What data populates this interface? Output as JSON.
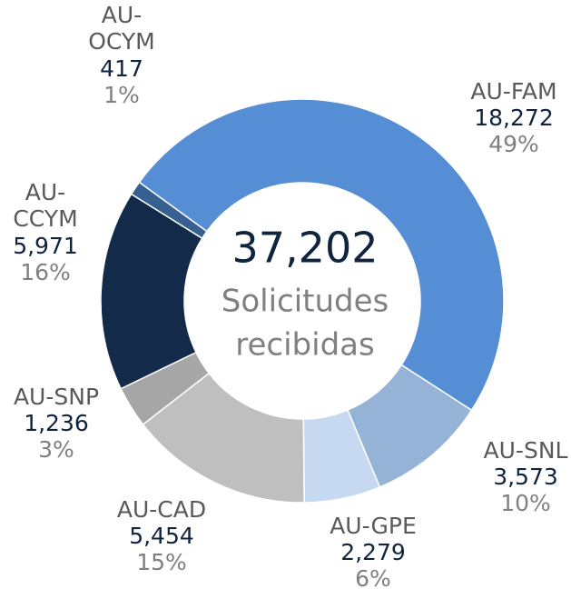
{
  "chart_data": {
    "type": "donut",
    "total": 37202,
    "total_label": "37,202",
    "subtitle": "Solicitudes recibidas",
    "categories": [
      "AU-FAM",
      "AU-SNL",
      "AU-GPE",
      "AU-CAD",
      "AU-SNP",
      "AU-CCYM",
      "AU-OCYM"
    ],
    "values": [
      18272,
      3573,
      2279,
      5454,
      1236,
      5971,
      417
    ],
    "value_labels": [
      "18,272",
      "3,573",
      "2,279",
      "5,454",
      "1,236",
      "5,971",
      "417"
    ],
    "percents": [
      49,
      10,
      6,
      15,
      3,
      16,
      1
    ],
    "percent_labels": [
      "49%",
      "10%",
      "6%",
      "15%",
      "3%",
      "16%",
      "1%"
    ],
    "colors": [
      "#558ed5",
      "#95b3d7",
      "#c6d9f1",
      "#bfbfbf",
      "#a6a6a6",
      "#132a4b",
      "#366092"
    ]
  }
}
